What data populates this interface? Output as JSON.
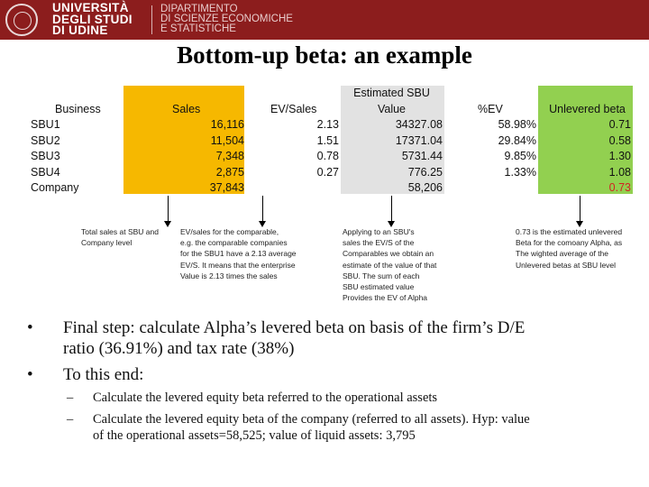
{
  "header": {
    "university_lines": [
      "UNIVERSITÀ",
      "DEGLI STUDI",
      "DI UDINE"
    ],
    "department_lines": [
      "DIPARTIMENTO",
      "DI SCIENZE ECONOMICHE",
      "E STATISTICHE"
    ]
  },
  "title": "Bottom-up beta: an example",
  "table": {
    "business": {
      "header": "Business",
      "rows": [
        "SBU1",
        "SBU2",
        "SBU3",
        "SBU4",
        "Company"
      ]
    },
    "sales": {
      "header": "Sales",
      "rows": [
        "16,116",
        "11,504",
        "7,348",
        "2,875",
        "37,843"
      ]
    },
    "ev_sales": {
      "header": "EV/Sales",
      "rows": [
        "2.13",
        "1.51",
        "0.78",
        "0.27"
      ]
    },
    "sbu_value": {
      "header_lines": [
        "Estimated SBU",
        "Value"
      ],
      "rows": [
        "34327.08",
        "17371.04",
        "5731.44",
        "776.25",
        "58,206"
      ]
    },
    "pct_ev": {
      "header": "%EV",
      "rows": [
        "58.98%",
        "29.84%",
        "9.85%",
        "1.33%"
      ]
    },
    "unlevered_beta": {
      "header": "Unlevered beta",
      "rows": [
        "0.71",
        "0.58",
        "1.30",
        "1.08",
        "0.73"
      ]
    }
  },
  "colors": {
    "header_bg": "#8c1d1d",
    "sales_bg": "#f6b800",
    "sbu_value_bg": "#e2e2e2",
    "beta_bg": "#92d050",
    "highlight": "#d22222"
  },
  "notes": {
    "sales": [
      "Total sales at SBU and",
      "Company level"
    ],
    "ev_sales": [
      "EV/sales for the comparable,",
      "e.g. the comparable companies",
      "for the SBU1 have a 2.13 average",
      "EV/S. It means that the enterprise",
      "Value is 2.13 times the sales"
    ],
    "sbu_value": [
      "Applying to an SBU's",
      "sales the EV/S of the",
      "Comparables we obtain an",
      "estimate of the value of that",
      "SBU. The sum of each",
      "SBU estimated value",
      "Provides the EV of Alpha"
    ],
    "beta": [
      "0.73 is the estimated unlevered",
      "Beta for the comoany Alpha, as",
      "The wighted average of the",
      "Unlevered betas at SBU level"
    ]
  },
  "bullets": [
    {
      "lines": [
        "Final step: calculate Alpha’s levered beta on basis of the firm’s D/E",
        "ratio (36.91%) and tax rate (38%)"
      ]
    },
    {
      "lines": [
        "To this end:"
      ]
    }
  ],
  "subbullets": [
    {
      "lines": [
        "Calculate the levered equity beta referred to the operational assets"
      ]
    },
    {
      "lines": [
        "Calculate the levered equity beta of the company (referred to all assets). Hyp: value",
        "of the operational assets=58,525; value of liquid assets: 3,795"
      ]
    }
  ],
  "symbols": {
    "bullet": "•",
    "dash": "–"
  }
}
